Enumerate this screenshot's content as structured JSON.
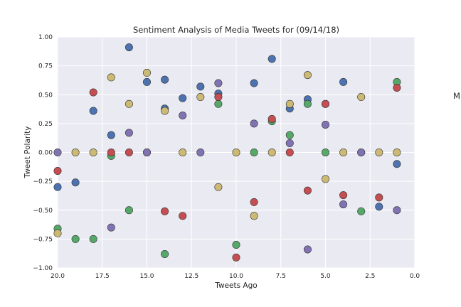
{
  "chart_data": {
    "type": "scatter",
    "title": "Sentiment Analysis of Media Tweets for (09/14/18)",
    "xlabel": "Tweets Ago",
    "ylabel": "Tweet Polarity",
    "xlim": [
      20,
      0
    ],
    "ylim": [
      -1.0,
      1.0
    ],
    "x_ticks": [
      "20.0",
      "17.5",
      "15.0",
      "12.5",
      "10.0",
      "7.5",
      "5.0",
      "2.5",
      "0.0"
    ],
    "y_ticks": [
      "1.00",
      "0.75",
      "0.50",
      "0.25",
      "0.00",
      "−0.25",
      "−0.50",
      "−0.75",
      "−1.00"
    ],
    "grid": true,
    "legend_fragment": "M",
    "series": [
      {
        "color": "#4c72b0",
        "points": [
          [
            20,
            -0.3
          ],
          [
            19,
            -0.26
          ],
          [
            18,
            0.36
          ],
          [
            17,
            0.15
          ],
          [
            16,
            0.91
          ],
          [
            15,
            0.61
          ],
          [
            15,
            0.0
          ],
          [
            14,
            0.63
          ],
          [
            14,
            0.38
          ],
          [
            13,
            0.47
          ],
          [
            12,
            0.57
          ],
          [
            11,
            0.51
          ],
          [
            9,
            0.6
          ],
          [
            8,
            0.81
          ],
          [
            7,
            0.38
          ],
          [
            6,
            0.46
          ],
          [
            5,
            0.42
          ],
          [
            4,
            0.61
          ],
          [
            3,
            0.0
          ],
          [
            2,
            -0.47
          ],
          [
            1,
            -0.1
          ]
        ]
      },
      {
        "color": "#55a868",
        "points": [
          [
            20,
            -0.66
          ],
          [
            19,
            -0.75
          ],
          [
            18,
            -0.75
          ],
          [
            17,
            -0.03
          ],
          [
            16,
            -0.5
          ],
          [
            14,
            -0.88
          ],
          [
            11,
            0.42
          ],
          [
            10,
            -0.8
          ],
          [
            9,
            0.0
          ],
          [
            8,
            0.27
          ],
          [
            7,
            0.15
          ],
          [
            6,
            0.42
          ],
          [
            5,
            0.0
          ],
          [
            3,
            -0.51
          ],
          [
            1,
            0.61
          ]
        ]
      },
      {
        "color": "#c44e52",
        "points": [
          [
            20,
            -0.16
          ],
          [
            18,
            0.52
          ],
          [
            17,
            0.0
          ],
          [
            16,
            0.0
          ],
          [
            14,
            -0.51
          ],
          [
            13,
            -0.55
          ],
          [
            11,
            0.48
          ],
          [
            10,
            -0.91
          ],
          [
            9,
            -0.43
          ],
          [
            8,
            0.29
          ],
          [
            7,
            0.0
          ],
          [
            6,
            -0.33
          ],
          [
            5,
            0.42
          ],
          [
            4,
            -0.37
          ],
          [
            2,
            -0.39
          ],
          [
            1,
            0.56
          ]
        ]
      },
      {
        "color": "#8172b2",
        "points": [
          [
            20,
            0.0
          ],
          [
            17,
            -0.65
          ],
          [
            16,
            0.17
          ],
          [
            15,
            0.0
          ],
          [
            13,
            0.32
          ],
          [
            12,
            0.0
          ],
          [
            11,
            0.6
          ],
          [
            9,
            0.25
          ],
          [
            7,
            0.08
          ],
          [
            6,
            -0.84
          ],
          [
            5,
            0.24
          ],
          [
            4,
            -0.45
          ],
          [
            3,
            0.0
          ],
          [
            1,
            -0.5
          ]
        ]
      },
      {
        "color": "#ccb974",
        "points": [
          [
            20,
            -0.7
          ],
          [
            19,
            0.0
          ],
          [
            18,
            0.0
          ],
          [
            17,
            0.65
          ],
          [
            16,
            0.42
          ],
          [
            15,
            0.69
          ],
          [
            14,
            0.36
          ],
          [
            13,
            0.0
          ],
          [
            12,
            0.48
          ],
          [
            11,
            -0.3
          ],
          [
            10,
            0.0
          ],
          [
            9,
            -0.55
          ],
          [
            8,
            0.0
          ],
          [
            7,
            0.42
          ],
          [
            6,
            0.67
          ],
          [
            5,
            -0.23
          ],
          [
            4,
            0.0
          ],
          [
            3,
            0.48
          ],
          [
            2,
            0.0
          ],
          [
            1,
            0.0
          ]
        ]
      }
    ]
  }
}
